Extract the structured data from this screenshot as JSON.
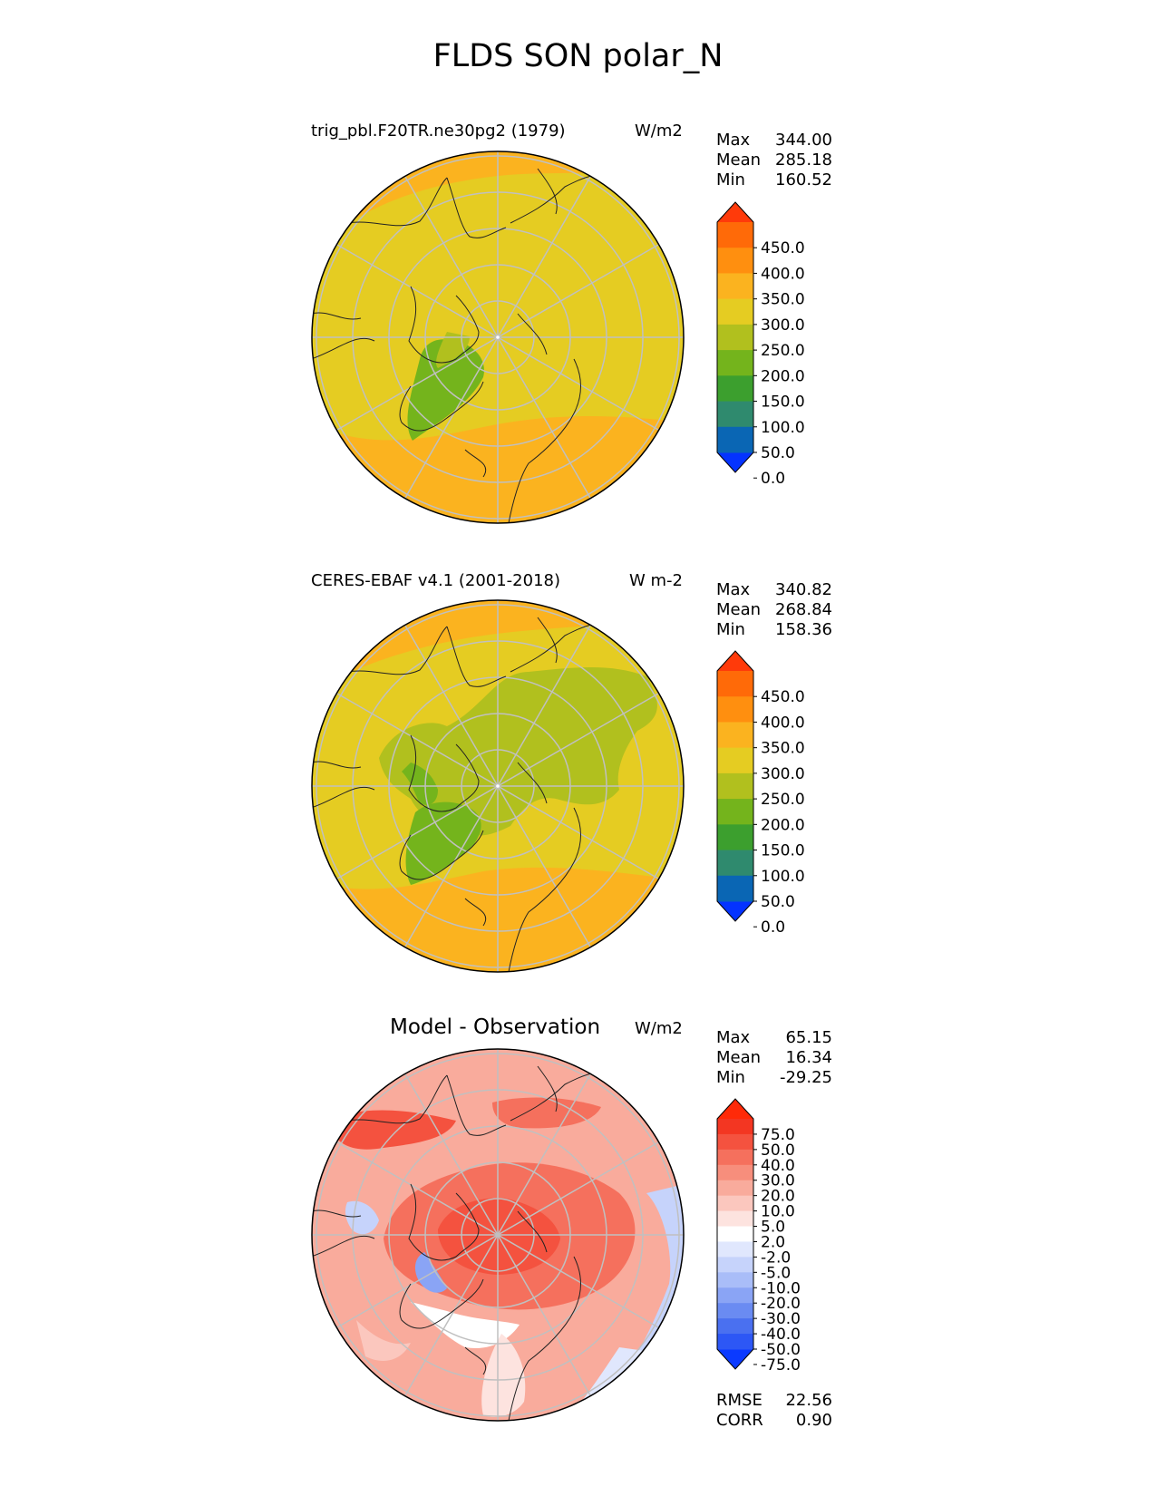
{
  "figure": {
    "title": "FLDS SON polar_N"
  },
  "panels": [
    {
      "id": "test",
      "title": "trig_pbl.F20TR.ne30pg2 (1979)",
      "units": "W/m2",
      "stats": [
        {
          "label": "Max",
          "value": "344.00"
        },
        {
          "label": "Mean",
          "value": "285.18"
        },
        {
          "label": "Min",
          "value": "160.52"
        }
      ],
      "colorbar": {
        "ticks": [
          "450.0",
          "400.0",
          "350.0",
          "300.0",
          "250.0",
          "200.0",
          "150.0",
          "100.0",
          "50.0",
          "0.0"
        ],
        "colors": [
          "#0433ff",
          "#0a66b4",
          "#2f8a6e",
          "#3c9f2e",
          "#74b41c",
          "#b1c01e",
          "#e5cc22",
          "#fbb31f",
          "#ff8f0f",
          "#ff6a08",
          "#ff3a0a"
        ]
      }
    },
    {
      "id": "reference",
      "title": "CERES-EBAF v4.1 (2001-2018)",
      "units": "W m-2",
      "stats": [
        {
          "label": "Max",
          "value": "340.82"
        },
        {
          "label": "Mean",
          "value": "268.84"
        },
        {
          "label": "Min",
          "value": "158.36"
        }
      ],
      "colorbar": {
        "ticks": [
          "450.0",
          "400.0",
          "350.0",
          "300.0",
          "250.0",
          "200.0",
          "150.0",
          "100.0",
          "50.0",
          "0.0"
        ],
        "colors": [
          "#0433ff",
          "#0a66b4",
          "#2f8a6e",
          "#3c9f2e",
          "#74b41c",
          "#b1c01e",
          "#e5cc22",
          "#fbb31f",
          "#ff8f0f",
          "#ff6a08",
          "#ff3a0a"
        ]
      }
    },
    {
      "id": "diff",
      "title": "Model - Observation",
      "units": "W/m2",
      "stats": [
        {
          "label": "Max",
          "value": "65.15"
        },
        {
          "label": "Mean",
          "value": "16.34"
        },
        {
          "label": "Min",
          "value": "-29.25"
        }
      ],
      "colorbar": {
        "ticks": [
          "75.0",
          "50.0",
          "40.0",
          "30.0",
          "20.0",
          "10.0",
          "5.0",
          "2.0",
          "-2.0",
          "-5.0",
          "-10.0",
          "-20.0",
          "-30.0",
          "-40.0",
          "-50.0",
          "-75.0"
        ],
        "colors": [
          "#0b3aff",
          "#2d57f5",
          "#4a70f0",
          "#6a8bf2",
          "#8aa4f5",
          "#a9bdf8",
          "#c6d3fb",
          "#e0e7fd",
          "#ffffff",
          "#fde3df",
          "#fbc7be",
          "#f9ab9c",
          "#f78e7c",
          "#f5705d",
          "#f4523f",
          "#f33622",
          "#ff2a08"
        ],
        "footer": [
          {
            "label": "RMSE",
            "value": "22.56"
          },
          {
            "label": "CORR",
            "value": "0.90"
          }
        ]
      }
    }
  ]
}
